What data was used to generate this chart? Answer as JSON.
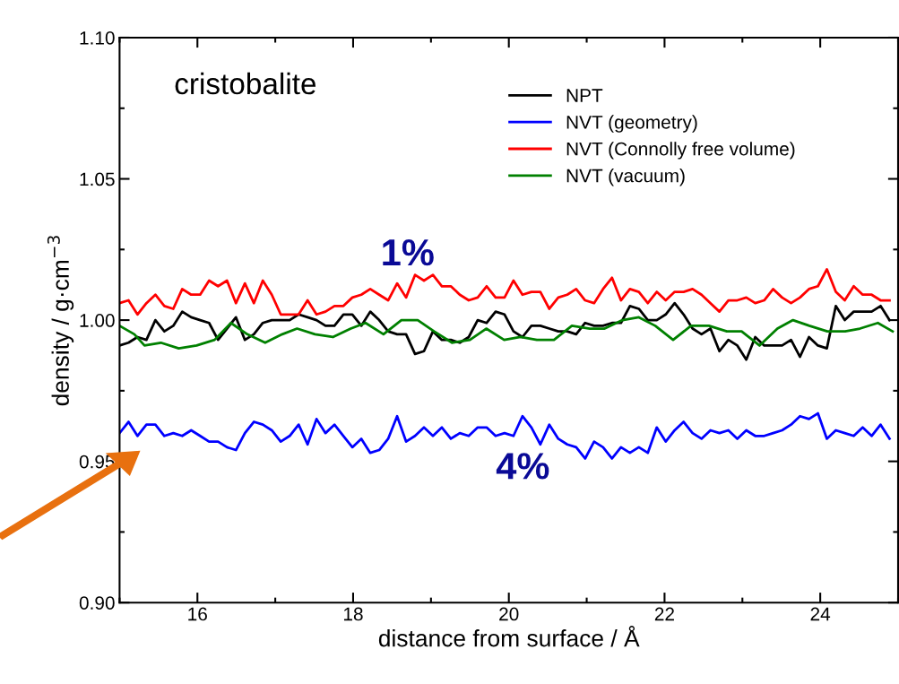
{
  "chart_data": {
    "type": "line",
    "title": "cristobalite",
    "xlabel": "distance from surface / Å",
    "ylabel": "density / g·cm$^{−3}$",
    "x": [
      15,
      15.115,
      15.23,
      15.345,
      15.46,
      15.575,
      15.69,
      15.805,
      15.92,
      16.035,
      16.15,
      16.265,
      16.38,
      16.495,
      16.61,
      16.725,
      16.84,
      16.955,
      17.07,
      17.185,
      17.3,
      17.415,
      17.53,
      17.645,
      17.76,
      17.875,
      17.99,
      18.105,
      18.22,
      18.335,
      18.45,
      18.565,
      18.68,
      18.795,
      18.91,
      19.025,
      19.14,
      19.255,
      19.37,
      19.485,
      19.6,
      19.715,
      19.83,
      19.945,
      20.06,
      20.175,
      20.29,
      20.405,
      20.52,
      20.635,
      20.75,
      20.865,
      20.98,
      21.095,
      21.21,
      21.325,
      21.44,
      21.555,
      21.67,
      21.785,
      21.9,
      22.015,
      22.13,
      22.245,
      22.36,
      22.475,
      22.59,
      22.705,
      22.82,
      22.935,
      23.05,
      23.165,
      23.28,
      23.395,
      23.51,
      23.625,
      23.74,
      23.855,
      23.97,
      24.085,
      24.2,
      24.315,
      24.43,
      24.545,
      24.66,
      24.775,
      24.89
    ],
    "series": [
      {
        "name": "NPT",
        "color": "#000000",
        "values": [
          0.991,
          0.992,
          0.994,
          0.993,
          1.0,
          0.996,
          0.998,
          1.003,
          1.001,
          1.0,
          0.999,
          0.993,
          0.997,
          1.001,
          0.993,
          0.995,
          0.999,
          1.0,
          1.0,
          1.0,
          1.002,
          1.001,
          1.0,
          0.998,
          0.998,
          1.002,
          1.002,
          0.998,
          1.003,
          1.0,
          0.996,
          0.995,
          0.995,
          0.988,
          0.989,
          0.996,
          0.993,
          0.993,
          0.992,
          0.994,
          1.0,
          0.999,
          1.003,
          1.002,
          0.996,
          0.994,
          0.998,
          0.998,
          0.997,
          0.996,
          0.996,
          0.995,
          0.999,
          0.998,
          0.998,
          0.999,
          0.999,
          1.005,
          1.004,
          1.0,
          1.0,
          1.002,
          1.006,
          1.002,
          0.997,
          0.995,
          0.997,
          0.989,
          0.993,
          0.991,
          0.986,
          0.994,
          0.991,
          0.991,
          0.991,
          0.993,
          0.987,
          0.994,
          0.991,
          0.99,
          1.005,
          1.0,
          1.003,
          1.003,
          1.003,
          1.005,
          1.0
        ]
      },
      {
        "name": "NVT (geometry)",
        "color": "#0000ff",
        "values": [
          0.96,
          0.964,
          0.959,
          0.963,
          0.963,
          0.959,
          0.96,
          0.959,
          0.961,
          0.959,
          0.957,
          0.957,
          0.955,
          0.954,
          0.96,
          0.964,
          0.963,
          0.961,
          0.957,
          0.959,
          0.963,
          0.956,
          0.965,
          0.96,
          0.963,
          0.959,
          0.955,
          0.958,
          0.953,
          0.954,
          0.958,
          0.966,
          0.957,
          0.959,
          0.962,
          0.959,
          0.962,
          0.958,
          0.96,
          0.959,
          0.962,
          0.962,
          0.959,
          0.96,
          0.959,
          0.966,
          0.962,
          0.956,
          0.963,
          0.958,
          0.956,
          0.955,
          0.951,
          0.957,
          0.955,
          0.951,
          0.955,
          0.953,
          0.955,
          0.953,
          0.962,
          0.957,
          0.961,
          0.964,
          0.96,
          0.958,
          0.961,
          0.96,
          0.961,
          0.958,
          0.961,
          0.959,
          0.959,
          0.96,
          0.961,
          0.963,
          0.966,
          0.965,
          0.967,
          0.958,
          0.961,
          0.96,
          0.959,
          0.962,
          0.959,
          0.963,
          0.958
        ]
      },
      {
        "name": "NVT (Connolly free volume)",
        "color": "#ff0000",
        "values": [
          1.006,
          1.007,
          1.002,
          1.006,
          1.009,
          1.005,
          1.004,
          1.011,
          1.009,
          1.009,
          1.014,
          1.012,
          1.014,
          1.006,
          1.013,
          1.006,
          1.014,
          1.009,
          1.002,
          1.002,
          1.002,
          1.007,
          1.002,
          1.003,
          1.005,
          1.005,
          1.008,
          1.009,
          1.011,
          1.009,
          1.007,
          1.013,
          1.008,
          1.016,
          1.014,
          1.016,
          1.012,
          1.012,
          1.009,
          1.007,
          1.008,
          1.012,
          1.008,
          1.008,
          1.014,
          1.009,
          1.01,
          1.01,
          1.004,
          1.008,
          1.009,
          1.011,
          1.007,
          1.006,
          1.011,
          1.015,
          1.007,
          1.011,
          1.01,
          1.006,
          1.01,
          1.007,
          1.01,
          1.01,
          1.011,
          1.009,
          1.006,
          1.003,
          1.007,
          1.007,
          1.008,
          1.006,
          1.007,
          1.011,
          1.008,
          1.006,
          1.008,
          1.011,
          1.012,
          1.018,
          1.01,
          1.007,
          1.012,
          1.009,
          1.009,
          1.007,
          1.007
        ]
      },
      {
        "name": "NVT (vacuum)",
        "color": "#008000",
        "x": [
          15.0,
          15.19,
          15.32,
          15.53,
          15.76,
          15.99,
          16.22,
          16.43,
          16.64,
          16.87,
          17.09,
          17.28,
          17.51,
          17.74,
          17.97,
          18.16,
          18.39,
          18.62,
          18.83,
          19.04,
          19.27,
          19.5,
          19.71,
          19.94,
          20.15,
          20.36,
          20.58,
          20.81,
          21.04,
          21.23,
          21.46,
          21.67,
          21.88,
          22.11,
          22.34,
          22.57,
          22.8,
          22.99,
          23.22,
          23.45,
          23.65,
          23.86,
          24.09,
          24.32,
          24.51,
          24.74,
          24.93
        ],
        "values": [
          0.998,
          0.995,
          0.991,
          0.992,
          0.99,
          0.991,
          0.993,
          0.999,
          0.995,
          0.992,
          0.995,
          0.997,
          0.995,
          0.994,
          0.997,
          0.999,
          0.995,
          1.0,
          1.0,
          0.996,
          0.992,
          0.993,
          0.997,
          0.993,
          0.994,
          0.993,
          0.993,
          0.998,
          0.997,
          0.997,
          1.0,
          1.001,
          0.998,
          0.993,
          0.998,
          0.998,
          0.996,
          0.996,
          0.991,
          0.997,
          1.0,
          0.998,
          0.996,
          0.996,
          0.997,
          0.999,
          0.996
        ]
      }
    ],
    "xlim": [
      15,
      25
    ],
    "xticks": [
      16,
      18,
      20,
      22,
      24
    ],
    "ylim": [
      0.9,
      1.1
    ],
    "yticks": [
      {
        "value": 0.9,
        "label": "0.90"
      },
      {
        "value": 0.95,
        "label": "0.95"
      },
      {
        "value": 1.0,
        "label": "1.00"
      },
      {
        "value": 1.05,
        "label": "1.05"
      },
      {
        "value": 1.1,
        "label": "1.10"
      }
    ],
    "annotations": [
      "1%",
      "4%"
    ],
    "legend": "top right",
    "grid": false,
    "marker": "none",
    "line_style": "solid"
  }
}
